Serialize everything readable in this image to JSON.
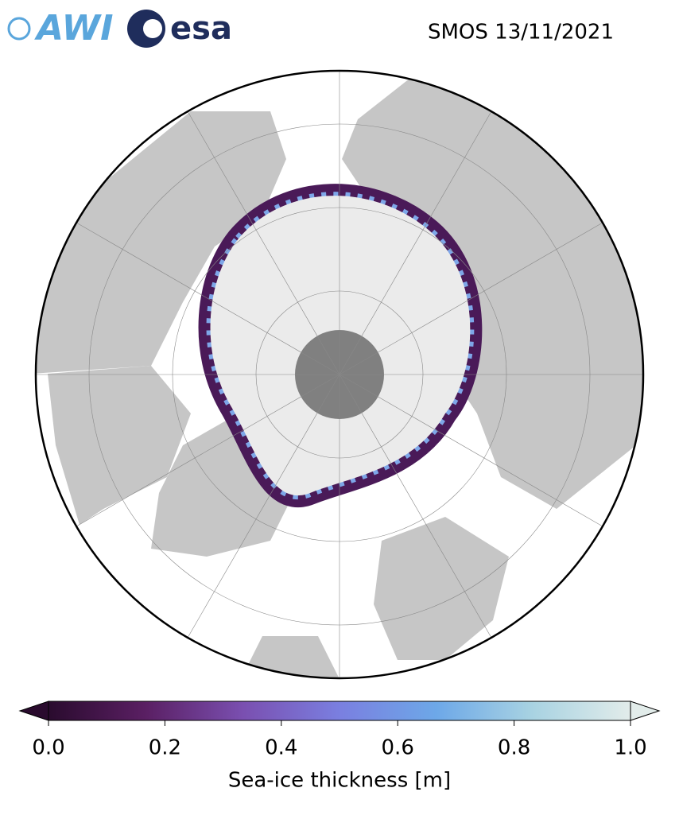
{
  "header": {
    "logos": [
      "AWI",
      "esa"
    ],
    "title": "SMOS 13/11/2021"
  },
  "colorbar": {
    "label": "Sea-ice thickness [m]",
    "lim": [
      0,
      1
    ],
    "ticks": [
      {
        "value": 0,
        "label": "0.0"
      },
      {
        "value": 0.2,
        "label": "0.2"
      },
      {
        "value": 0.4,
        "label": "0.4"
      },
      {
        "value": 0.6,
        "label": "0.6"
      },
      {
        "value": 0.8,
        "label": "0.8"
      },
      {
        "value": 1,
        "label": "1.0"
      }
    ],
    "colors": [
      "#2a0b2e",
      "#5a1f63",
      "#7a4fb0",
      "#7a7fe0",
      "#6da8e8",
      "#a9d3e2",
      "#e2ecea"
    ]
  }
}
